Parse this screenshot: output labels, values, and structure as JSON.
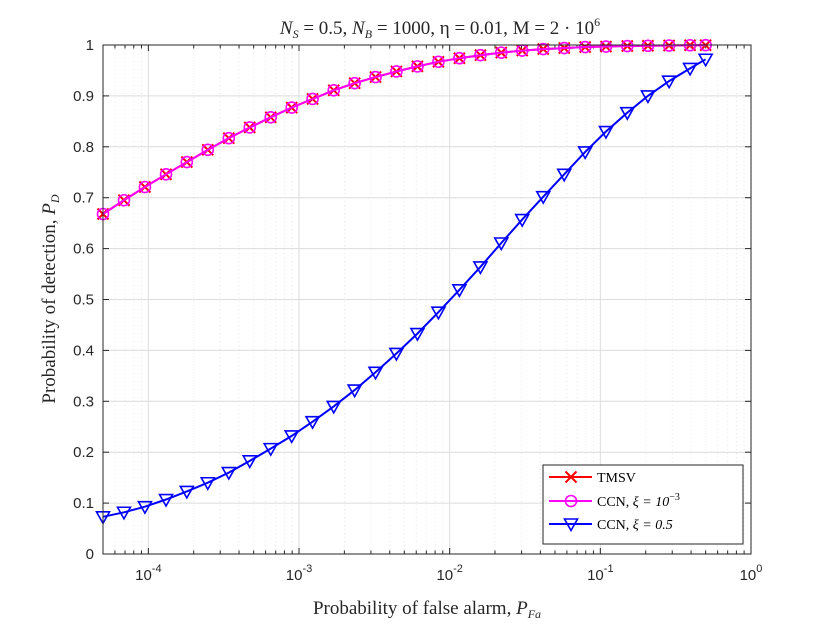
{
  "chart_data": {
    "type": "line",
    "title": "N_S = 0.5, N_B = 1000, η = 0.01, M = 2 · 10^6",
    "title_parts": {
      "ns_sym": "N",
      "ns_sub": "S",
      "ns_val": " = 0.5, ",
      "nb_sym": "N",
      "nb_sub": "B",
      "nb_val": " = 1000, ",
      "eta": "η = 0.01, ",
      "m": "M = 2 · 10",
      "m_sup": "6"
    },
    "xlabel": "Probability of false alarm, P_Fa",
    "xlabel_parts": {
      "text": "Probability of false alarm, ",
      "sym": "P",
      "sub": "Fa"
    },
    "ylabel": "Probability of detection, P_D",
    "ylabel_parts": {
      "text": "Probability of detection, ",
      "sym": "P",
      "sub": "D"
    },
    "x_scale": "log",
    "xlim": [
      5e-05,
      1
    ],
    "ylim": [
      0,
      1
    ],
    "x_ticks": [
      {
        "base": "10",
        "exp": "-4",
        "value": 0.0001
      },
      {
        "base": "10",
        "exp": "-3",
        "value": 0.001
      },
      {
        "base": "10",
        "exp": "-2",
        "value": 0.01
      },
      {
        "base": "10",
        "exp": "-1",
        "value": 0.1
      },
      {
        "base": "10",
        "exp": "0",
        "value": 1
      }
    ],
    "y_ticks": [
      "0",
      "0.1",
      "0.2",
      "0.3",
      "0.4",
      "0.5",
      "0.6",
      "0.7",
      "0.8",
      "0.9",
      "1"
    ],
    "grid": true,
    "minor_grid": true,
    "legend_position": "bottom-right",
    "x": [
      5e-05,
      6.89e-05,
      9.49e-05,
      0.000131,
      0.00018,
      0.000248,
      0.000342,
      0.000471,
      0.000649,
      0.000894,
      0.00123,
      0.0017,
      0.00234,
      0.00322,
      0.00443,
      0.00611,
      0.00842,
      0.0116,
      0.016,
      0.022,
      0.0303,
      0.0418,
      0.0576,
      0.0793,
      0.109,
      0.151,
      0.207,
      0.286,
      0.394,
      0.5
    ],
    "series": [
      {
        "name": "TMSV",
        "legend": {
          "text": "TMSV"
        },
        "color": "#ff0000",
        "marker": "x",
        "values": [
          0.668,
          0.695,
          0.721,
          0.746,
          0.77,
          0.794,
          0.817,
          0.838,
          0.858,
          0.877,
          0.894,
          0.911,
          0.925,
          0.937,
          0.948,
          0.958,
          0.967,
          0.974,
          0.98,
          0.985,
          0.989,
          0.992,
          0.994,
          0.996,
          0.997,
          0.998,
          0.9985,
          0.999,
          0.9995,
          0.9997
        ]
      },
      {
        "name": "CCN, ξ = 10^-3",
        "legend": {
          "text": "CCN, ",
          "xi": "ξ = 10",
          "sup": "−3"
        },
        "color": "#ff00ff",
        "marker": "o",
        "values": [
          0.668,
          0.695,
          0.721,
          0.746,
          0.77,
          0.794,
          0.817,
          0.838,
          0.858,
          0.877,
          0.894,
          0.911,
          0.925,
          0.937,
          0.948,
          0.958,
          0.967,
          0.974,
          0.98,
          0.985,
          0.989,
          0.992,
          0.994,
          0.996,
          0.997,
          0.998,
          0.9985,
          0.999,
          0.9995,
          0.9997
        ]
      },
      {
        "name": "CCN, ξ = 0.5",
        "legend": {
          "text": "CCN, ",
          "xi": "ξ = 0.5"
        },
        "color": "#0000ff",
        "marker": "triangle-down",
        "values": [
          0.073,
          0.082,
          0.093,
          0.107,
          0.123,
          0.14,
          0.16,
          0.183,
          0.207,
          0.232,
          0.26,
          0.29,
          0.322,
          0.357,
          0.394,
          0.433,
          0.475,
          0.519,
          0.564,
          0.611,
          0.657,
          0.702,
          0.746,
          0.79,
          0.83,
          0.867,
          0.9,
          0.929,
          0.954,
          0.972
        ]
      }
    ]
  }
}
